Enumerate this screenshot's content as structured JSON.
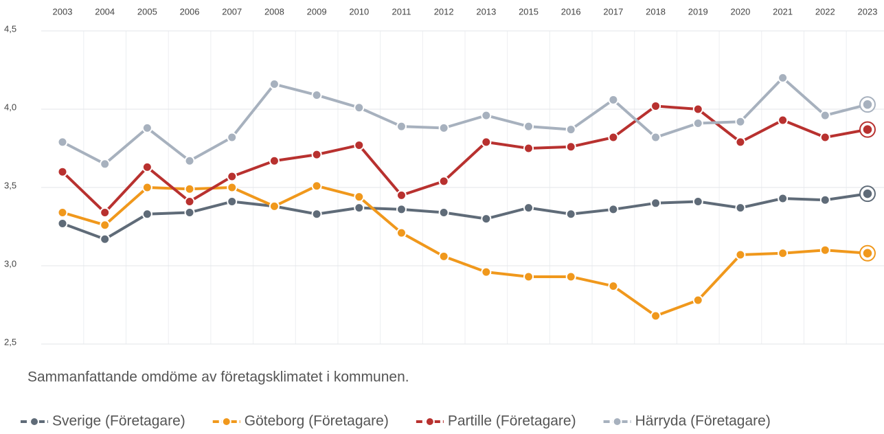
{
  "chart_data": {
    "type": "line",
    "subtitle": "Sammanfattande omdöme av företagsklimatet i kommunen.",
    "categories": [
      "2003",
      "2004",
      "2005",
      "2006",
      "2007",
      "2008",
      "2009",
      "2010",
      "2011",
      "2012",
      "2013",
      "2015",
      "2016",
      "2017",
      "2018",
      "2019",
      "2020",
      "2021",
      "2022",
      "2023"
    ],
    "series": [
      {
        "name": "Sverige (Företagare)",
        "color": "#5f6b78",
        "values": [
          3.27,
          3.17,
          3.33,
          3.34,
          3.41,
          3.38,
          3.33,
          3.37,
          3.36,
          3.34,
          3.3,
          3.37,
          3.33,
          3.36,
          3.4,
          3.41,
          3.37,
          3.43,
          3.42,
          3.46
        ]
      },
      {
        "name": "Göteborg (Företagare)",
        "color": "#f0981c",
        "values": [
          3.34,
          3.26,
          3.5,
          3.49,
          3.5,
          3.38,
          3.51,
          3.44,
          3.21,
          3.06,
          2.96,
          2.93,
          2.93,
          2.87,
          2.68,
          2.78,
          3.07,
          3.08,
          3.1,
          3.08
        ]
      },
      {
        "name": "Partille (Företagare)",
        "color": "#b8312f",
        "values": [
          3.6,
          3.34,
          3.63,
          3.41,
          3.57,
          3.67,
          3.71,
          3.77,
          3.45,
          3.54,
          3.79,
          3.75,
          3.76,
          3.82,
          4.02,
          4.0,
          3.79,
          3.93,
          3.82,
          3.87
        ]
      },
      {
        "name": "Härryda (Företagare)",
        "color": "#a7b1be",
        "values": [
          3.79,
          3.65,
          3.88,
          3.67,
          3.82,
          4.16,
          4.09,
          4.01,
          3.89,
          3.88,
          3.96,
          3.89,
          3.87,
          4.06,
          3.82,
          3.91,
          3.92,
          4.2,
          3.96,
          4.03
        ]
      }
    ],
    "ylim": [
      2.5,
      4.5
    ],
    "yticks": [
      {
        "value": 2.5,
        "label": "2,5"
      },
      {
        "value": 3.0,
        "label": "3,0"
      },
      {
        "value": 3.5,
        "label": "3,5"
      },
      {
        "value": 4.0,
        "label": "4,0"
      },
      {
        "value": 4.5,
        "label": "4,5"
      }
    ],
    "grid": true
  }
}
